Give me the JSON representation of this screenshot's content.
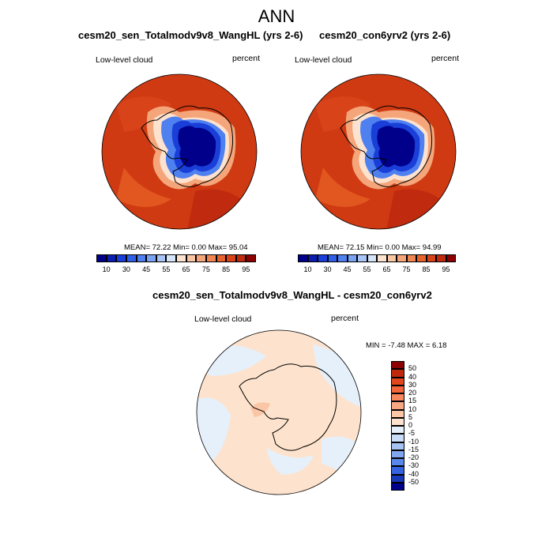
{
  "main_title": "ANN",
  "panels": [
    {
      "title": "cesm20_sen_Totalmodv9v8_WangHL (yrs 2-6)",
      "left_label": "Low-level cloud",
      "right_label": "percent",
      "stats": "MEAN=  72.22  Min=   0.00  Max=  95.04"
    },
    {
      "title": "cesm20_con6yrv2 (yrs 2-6)",
      "left_label": "Low-level cloud",
      "right_label": "percent",
      "stats": "MEAN=  72.15  Min=   0.00  Max=  94.99"
    }
  ],
  "diff_panel": {
    "title": "cesm20_sen_Totalmodv9v8_WangHL - cesm20_con6yrv2",
    "left_label": "Low-level cloud",
    "right_label": "percent",
    "stats": "MIN =  -7.48 MAX =   6.18"
  },
  "abs_colorbar": {
    "colors": [
      "#00008b",
      "#0a1fb0",
      "#1a3fd8",
      "#2f5fe8",
      "#4f80f0",
      "#7aa3f2",
      "#a9c5f5",
      "#d6e4f8",
      "#fde3cf",
      "#f9c6a3",
      "#f5a57a",
      "#f08452",
      "#e8622e",
      "#d8431a",
      "#c02a0e",
      "#8b0000"
    ],
    "labels": [
      "10",
      "30",
      "45",
      "55",
      "65",
      "75",
      "85",
      "95"
    ]
  },
  "diff_colorbar": {
    "colors": [
      "#8b0000",
      "#c0280c",
      "#e2461c",
      "#f2643a",
      "#f7875d",
      "#f9a780",
      "#fbc6a6",
      "#fde3cd",
      "#e6f0fb",
      "#c9dcf8",
      "#a6c3f3",
      "#7fa6ef",
      "#5a88ea",
      "#3563e0",
      "#1838b8",
      "#00008b"
    ],
    "labels": [
      "50",
      "40",
      "30",
      "20",
      "15",
      "10",
      "5",
      "0",
      "-5",
      "-10",
      "-15",
      "-20",
      "-30",
      "-40",
      "-50"
    ]
  }
}
